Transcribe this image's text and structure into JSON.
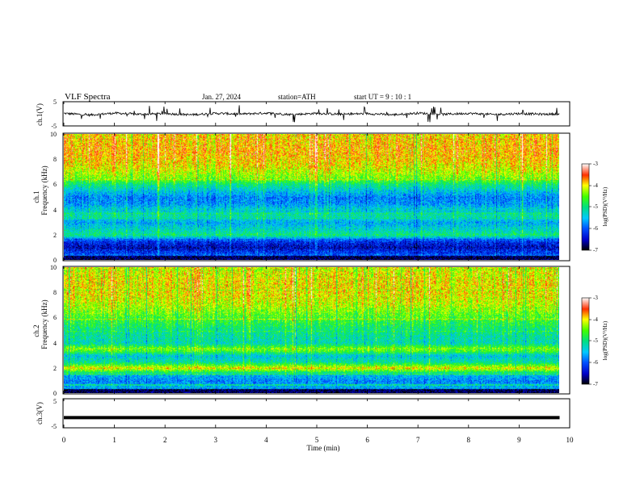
{
  "header": {
    "title": "VLF  Spectra",
    "date": "Jan. 27, 2024",
    "station": "station=ATH",
    "start": "start  UT  =   9  : 10 : 1"
  },
  "panels": {
    "ch1_wave_label": "ch.1(V)",
    "ch1_spec_label_a": "ch.1",
    "ch1_spec_label_b": "Frequency  (kHz)",
    "ch2_spec_label_a": "ch.2",
    "ch2_spec_label_b": "Frequency  (kHz)",
    "ch3_wave_label": "ch.3(V)",
    "wave_ticks": [
      "5",
      "-5"
    ],
    "freq_ticks": [
      "0",
      "2",
      "4",
      "6",
      "8",
      "10"
    ],
    "colorbar_label": "log(PSD)(V²/Hz)",
    "colorbar_ticks": [
      "-3",
      "-4",
      "-5",
      "-6",
      "-7"
    ]
  },
  "chart_data": [
    {
      "type": "line",
      "ylabel": "ch.1(V)",
      "ylim": [
        -5,
        5
      ],
      "xlim": [
        0,
        10
      ],
      "x": [
        0,
        0.5,
        1,
        1.5,
        2,
        2.5,
        3,
        3.5,
        4,
        4.5,
        5,
        5.5,
        6,
        6.5,
        7,
        7.5,
        8,
        8.5,
        9,
        9.5,
        9.8
      ],
      "y": [
        0.2,
        -0.5,
        0.3,
        -0.2,
        0.1,
        -0.4,
        0.2,
        -0.1,
        0.3,
        -0.3,
        0.2,
        -0.2,
        0.1,
        -0.4,
        0.3,
        -0.2,
        0.2,
        -0.3,
        0.1,
        -0.2,
        0.0
      ]
    },
    {
      "type": "heatmap",
      "ylabel": "Frequency  (kHz)",
      "xlim": [
        0,
        10
      ],
      "ylim": [
        0,
        10
      ],
      "zlim": [
        -7,
        -3
      ],
      "zlabel": "log(PSD)(V²/Hz)",
      "freq_profile_khz": [
        0.5,
        1,
        1.5,
        2,
        2.5,
        3,
        3.5,
        4,
        4.5,
        5,
        5.5,
        6,
        6.5,
        7,
        7.5,
        8,
        8.5,
        9,
        9.5,
        10
      ],
      "log_psd_profile": [
        -6.0,
        -6.5,
        -6.2,
        -5.0,
        -5.3,
        -5.6,
        -5.1,
        -5.3,
        -5.7,
        -5.8,
        -5.4,
        -5.0,
        -4.4,
        -4.2,
        -4.0,
        -3.9,
        -3.8,
        -3.8,
        -3.9,
        -3.9
      ]
    },
    {
      "type": "heatmap",
      "ylabel": "Frequency  (kHz)",
      "xlim": [
        0,
        10
      ],
      "ylim": [
        0,
        10
      ],
      "zlim": [
        -7,
        -3
      ],
      "zlabel": "log(PSD)(V²/Hz)",
      "freq_profile_khz": [
        0.5,
        1,
        1.5,
        2,
        2.5,
        3,
        3.5,
        4,
        4.5,
        5,
        5.5,
        6,
        6.5,
        7,
        7.5,
        8,
        8.5,
        9,
        9.5,
        10
      ],
      "log_psd_profile": [
        -5.6,
        -5.8,
        -5.4,
        -4.0,
        -5.1,
        -5.4,
        -4.3,
        -5.2,
        -5.1,
        -5.0,
        -4.8,
        -4.6,
        -4.4,
        -4.2,
        -4.1,
        -4.0,
        -4.0,
        -4.0,
        -4.1,
        -4.1
      ]
    },
    {
      "type": "line",
      "ylabel": "ch.3(V)",
      "ylim": [
        -5,
        5
      ],
      "xlim": [
        0,
        10
      ],
      "x": [
        0,
        9.8
      ],
      "y": [
        -1.5,
        -1.5
      ]
    }
  ],
  "time_axis": {
    "label": "Time  (min)",
    "ticks": [
      "0",
      "1",
      "2",
      "3",
      "4",
      "5",
      "6",
      "7",
      "8",
      "9",
      "10"
    ]
  }
}
